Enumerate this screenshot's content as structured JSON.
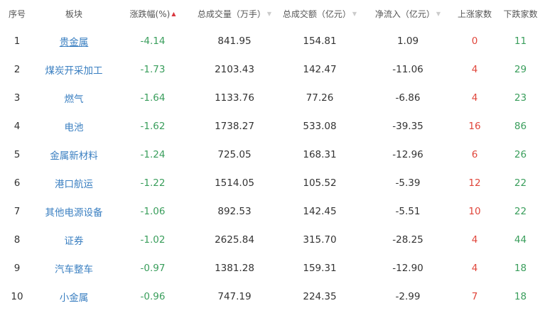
{
  "colors": {
    "up": "#e0453a",
    "down": "#3a9e5c",
    "link": "#3a7fc1",
    "sort_active": "#d9363e"
  },
  "headers": [
    {
      "label": "序号",
      "sort": "none"
    },
    {
      "label": "板块",
      "sort": "none"
    },
    {
      "label": "涨跌幅(%)",
      "sort": "asc-active",
      "sort_icon": "▲"
    },
    {
      "label": "总成交量（万手）",
      "sort": "idle",
      "sort_icon": "▼"
    },
    {
      "label": "总成交额（亿元）",
      "sort": "idle",
      "sort_icon": "▼"
    },
    {
      "label": "净流入（亿元）",
      "sort": "idle",
      "sort_icon": "▼"
    },
    {
      "label": "上涨家数",
      "sort": "none"
    },
    {
      "label": "下跌家数",
      "sort": "none"
    }
  ],
  "rows": [
    {
      "rank": "1",
      "sector": "贵金属",
      "change_pct": "-4.14",
      "volume": "841.95",
      "turnover": "154.81",
      "net_inflow": "1.09",
      "up_count": "0",
      "down_count": "11"
    },
    {
      "rank": "2",
      "sector": "煤炭开采加工",
      "change_pct": "-1.73",
      "volume": "2103.43",
      "turnover": "142.47",
      "net_inflow": "-11.06",
      "up_count": "4",
      "down_count": "29"
    },
    {
      "rank": "3",
      "sector": "燃气",
      "change_pct": "-1.64",
      "volume": "1133.76",
      "turnover": "77.26",
      "net_inflow": "-6.86",
      "up_count": "4",
      "down_count": "23"
    },
    {
      "rank": "4",
      "sector": "电池",
      "change_pct": "-1.62",
      "volume": "1738.27",
      "turnover": "533.08",
      "net_inflow": "-39.35",
      "up_count": "16",
      "down_count": "86"
    },
    {
      "rank": "5",
      "sector": "金属新材料",
      "change_pct": "-1.24",
      "volume": "725.05",
      "turnover": "168.31",
      "net_inflow": "-12.96",
      "up_count": "6",
      "down_count": "26"
    },
    {
      "rank": "6",
      "sector": "港口航运",
      "change_pct": "-1.22",
      "volume": "1514.05",
      "turnover": "105.52",
      "net_inflow": "-5.39",
      "up_count": "12",
      "down_count": "22"
    },
    {
      "rank": "7",
      "sector": "其他电源设备",
      "change_pct": "-1.06",
      "volume": "892.53",
      "turnover": "142.45",
      "net_inflow": "-5.51",
      "up_count": "10",
      "down_count": "22"
    },
    {
      "rank": "8",
      "sector": "证券",
      "change_pct": "-1.02",
      "volume": "2625.84",
      "turnover": "315.70",
      "net_inflow": "-28.25",
      "up_count": "4",
      "down_count": "44"
    },
    {
      "rank": "9",
      "sector": "汽车整车",
      "change_pct": "-0.97",
      "volume": "1381.28",
      "turnover": "159.31",
      "net_inflow": "-12.90",
      "up_count": "4",
      "down_count": "18"
    },
    {
      "rank": "10",
      "sector": "小金属",
      "change_pct": "-0.96",
      "volume": "747.19",
      "turnover": "224.35",
      "net_inflow": "-2.99",
      "up_count": "7",
      "down_count": "18"
    }
  ]
}
